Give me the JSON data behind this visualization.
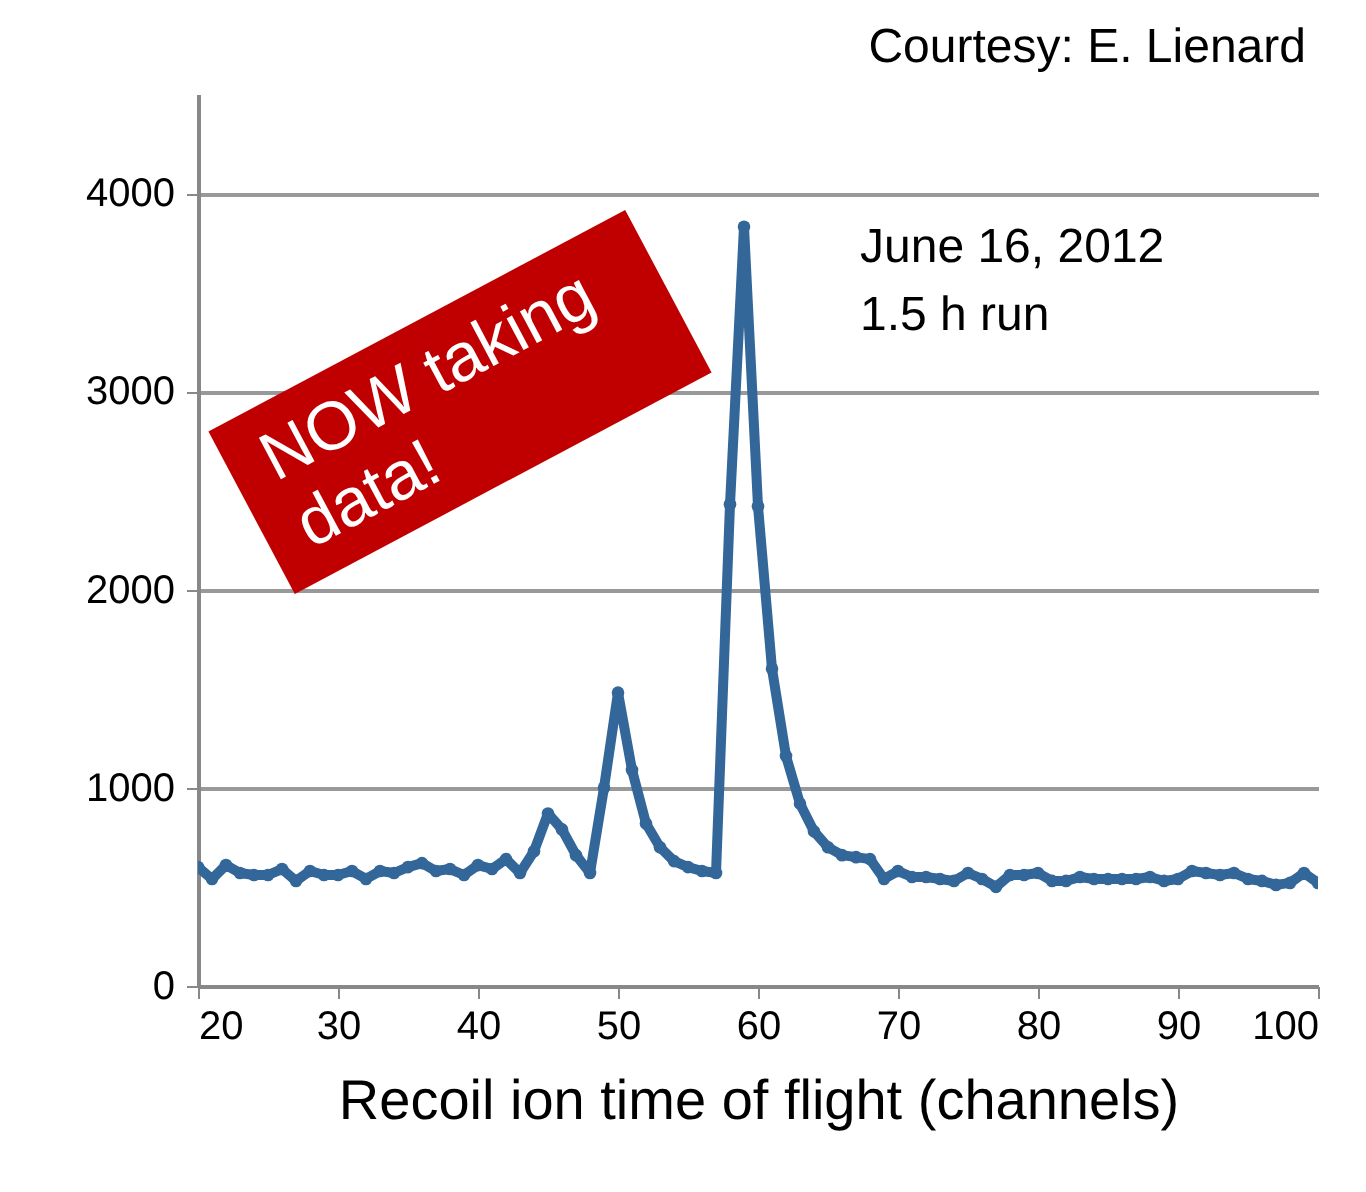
{
  "chart_data": {
    "type": "line",
    "xlabel": "Recoil ion time of flight (channels)",
    "annotations": [
      "Courtesy: E. Lienard",
      "June 16, 2012",
      "1.5 h run",
      "NOW taking data!"
    ],
    "x": [
      20,
      21,
      22,
      23,
      24,
      25,
      26,
      27,
      28,
      29,
      30,
      31,
      32,
      33,
      34,
      35,
      36,
      37,
      38,
      39,
      40,
      41,
      42,
      43,
      44,
      45,
      46,
      47,
      48,
      49,
      50,
      51,
      52,
      53,
      54,
      55,
      56,
      57,
      58,
      59,
      60,
      61,
      62,
      63,
      64,
      65,
      66,
      67,
      68,
      69,
      70,
      71,
      72,
      73,
      74,
      75,
      76,
      77,
      78,
      79,
      80,
      81,
      82,
      83,
      84,
      85,
      86,
      87,
      88,
      89,
      90,
      91,
      92,
      93,
      94,
      95,
      96,
      97,
      98,
      99,
      100
    ],
    "series": [
      {
        "color": "#336699",
        "values": [
          600,
          540,
          610,
          570,
          560,
          560,
          590,
          530,
          580,
          560,
          560,
          580,
          540,
          580,
          570,
          600,
          620,
          580,
          590,
          560,
          610,
          590,
          640,
          570,
          680,
          870,
          790,
          660,
          570,
          1000,
          1480,
          1090,
          820,
          700,
          630,
          600,
          580,
          570,
          2430,
          3830,
          2420,
          1600,
          1160,
          920,
          780,
          700,
          660,
          650,
          640,
          540,
          580,
          550,
          550,
          540,
          530,
          570,
          540,
          500,
          560,
          560,
          570,
          530,
          530,
          550,
          540,
          540,
          540,
          540,
          550,
          530,
          540,
          580,
          570,
          560,
          570,
          540,
          530,
          510,
          520,
          570,
          520
        ]
      }
    ],
    "xlim": [
      20,
      100
    ],
    "xticks": [
      20,
      30,
      40,
      50,
      60,
      70,
      80,
      90,
      100
    ],
    "ylim": [
      0,
      4500
    ],
    "yticks": [
      0,
      1000,
      2000,
      3000,
      4000
    ],
    "grid": "y",
    "marker": "circle",
    "line_style": "solid"
  }
}
